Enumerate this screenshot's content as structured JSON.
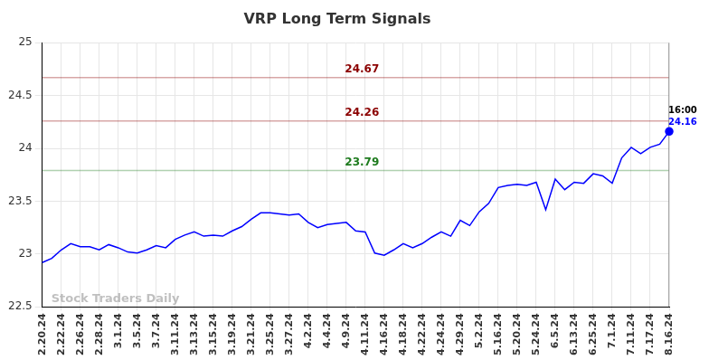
{
  "chart_data": {
    "type": "line",
    "title": "VRP Long Term Signals",
    "categories": [
      "2.20.24",
      null,
      "2.22.24",
      null,
      "2.26.24",
      null,
      "2.28.24",
      null,
      "3.1.24",
      null,
      "3.5.24",
      null,
      "3.7.24",
      null,
      "3.11.24",
      null,
      "3.13.24",
      null,
      "3.15.24",
      null,
      "3.19.24",
      null,
      "3.21.24",
      null,
      "3.25.24",
      null,
      "3.27.24",
      null,
      "4.2.24",
      null,
      "4.4.24",
      null,
      "4.9.24",
      null,
      "4.11.24",
      null,
      "4.16.24",
      null,
      "4.18.24",
      null,
      "4.22.24",
      null,
      "4.24.24",
      null,
      "4.29.24",
      null,
      "5.2.24",
      null,
      "5.16.24",
      null,
      "5.20.24",
      null,
      "5.24.24",
      null,
      "6.5.24",
      null,
      "6.13.24",
      null,
      "6.25.24",
      null,
      "7.1.24",
      null,
      "7.11.24",
      null,
      "7.17.24",
      null,
      "8.16.24"
    ],
    "values": [
      22.92,
      22.96,
      23.04,
      23.1,
      23.07,
      23.07,
      23.04,
      23.09,
      23.06,
      23.02,
      23.01,
      23.04,
      23.08,
      23.06,
      23.14,
      23.18,
      23.21,
      23.17,
      23.18,
      23.17,
      23.22,
      23.26,
      23.33,
      23.39,
      23.39,
      23.38,
      23.37,
      23.38,
      23.3,
      23.25,
      23.28,
      23.29,
      23.3,
      23.22,
      23.21,
      23.01,
      22.99,
      23.04,
      23.1,
      23.06,
      23.1,
      23.16,
      23.21,
      23.17,
      23.32,
      23.27,
      23.4,
      23.48,
      23.63,
      23.65,
      23.66,
      23.65,
      23.68,
      23.42,
      23.71,
      23.61,
      23.68,
      23.67,
      23.76,
      23.74,
      23.67,
      23.91,
      24.01,
      23.95,
      24.01,
      24.04,
      24.16
    ],
    "color": "#0000ff",
    "ylim": [
      22.5,
      25
    ],
    "yticks": [
      22.5,
      23,
      23.5,
      24,
      24.5,
      25
    ],
    "grid": true,
    "signal_lines": [
      {
        "value": 24.67,
        "color": "#8b0000"
      },
      {
        "value": 24.26,
        "color": "#8b0000"
      },
      {
        "value": 23.79,
        "color": "#1e7b1e"
      }
    ],
    "last_point_note": "16:00",
    "watermark": "Stock Traders Daily"
  }
}
